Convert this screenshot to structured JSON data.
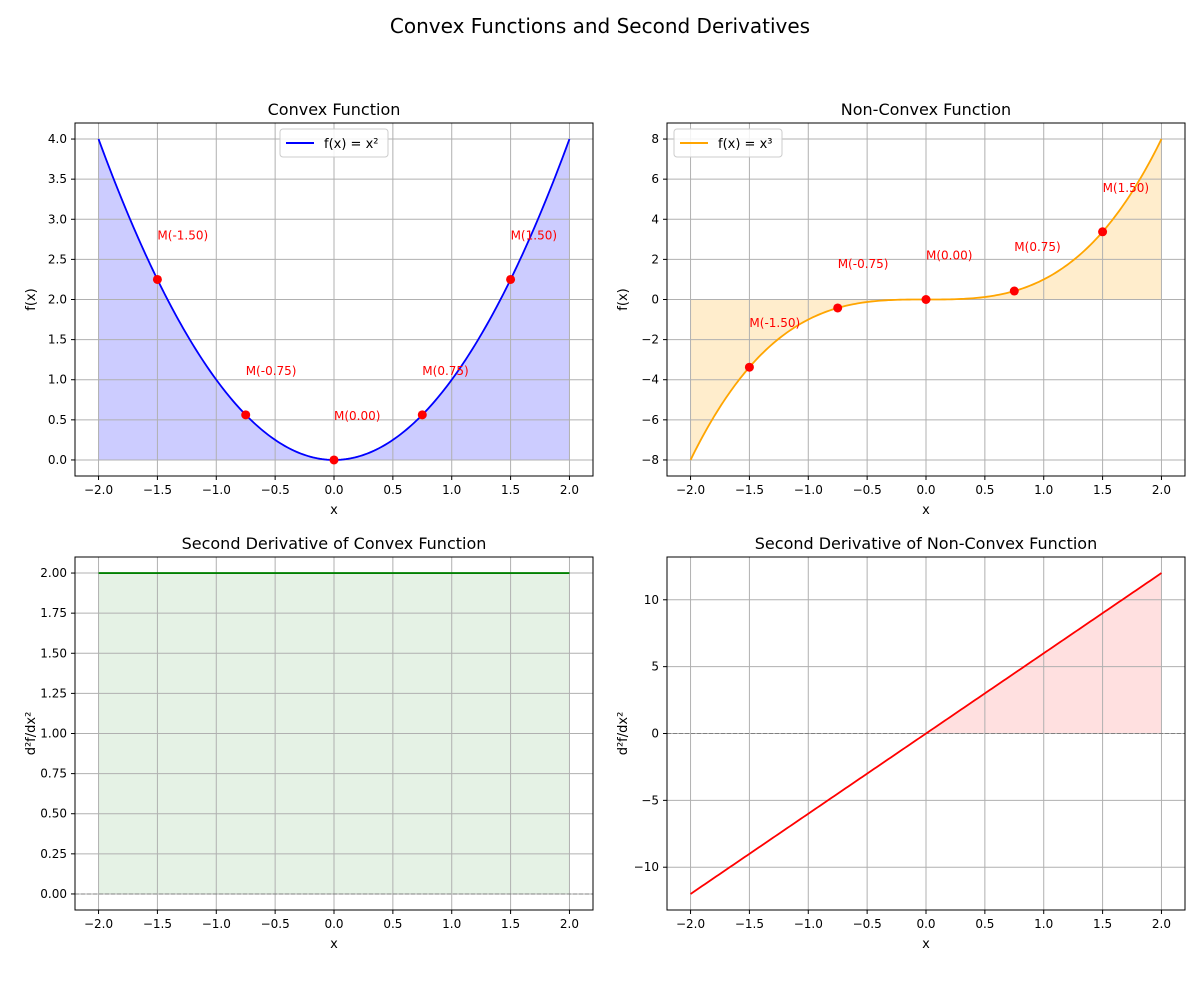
{
  "figure": {
    "suptitle": "Convex Functions and Second Derivatives"
  },
  "chart_data": [
    {
      "type": "line",
      "title": "Convex Function",
      "xlabel": "x",
      "ylabel": "f(x)",
      "function": "x^2",
      "xlim": [
        -2.2,
        2.2
      ],
      "ylim": [
        -0.2,
        4.2
      ],
      "xticks": [
        -2.0,
        -1.5,
        -1.0,
        -0.5,
        0.0,
        0.5,
        1.0,
        1.5,
        2.0
      ],
      "xtick_labels": [
        "−2.0",
        "−1.5",
        "−1.0",
        "−0.5",
        "0.0",
        "0.5",
        "1.0",
        "1.5",
        "2.0"
      ],
      "yticks": [
        0.0,
        0.5,
        1.0,
        1.5,
        2.0,
        2.5,
        3.0,
        3.5,
        4.0
      ],
      "ytick_labels": [
        "0.0",
        "0.5",
        "1.0",
        "1.5",
        "2.0",
        "2.5",
        "3.0",
        "3.5",
        "4.0"
      ],
      "x_range": [
        -2,
        2
      ],
      "series": [
        {
          "name": "f(x) = x²",
          "color": "#0000ff"
        }
      ],
      "fill": {
        "color": "#0000ff",
        "alpha": 0.2,
        "mode": "to_zero"
      },
      "points": [
        {
          "x": -1.5,
          "y": 2.25,
          "label": "M(-1.50)"
        },
        {
          "x": -0.75,
          "y": 0.5625,
          "label": "M(-0.75)"
        },
        {
          "x": 0.0,
          "y": 0.0,
          "label": "M(0.00)"
        },
        {
          "x": 0.75,
          "y": 0.5625,
          "label": "M(0.75)"
        },
        {
          "x": 1.5,
          "y": 2.25,
          "label": "M(1.50)"
        }
      ],
      "point_color": "#ff0000",
      "legend": "upper center",
      "grid": true
    },
    {
      "type": "line",
      "title": "Non-Convex Function",
      "xlabel": "x",
      "ylabel": "f(x)",
      "function": "x^3",
      "xlim": [
        -2.2,
        2.2
      ],
      "ylim": [
        -8.8,
        8.8
      ],
      "xticks": [
        -2.0,
        -1.5,
        -1.0,
        -0.5,
        0.0,
        0.5,
        1.0,
        1.5,
        2.0
      ],
      "xtick_labels": [
        "−2.0",
        "−1.5",
        "−1.0",
        "−0.5",
        "0.0",
        "0.5",
        "1.0",
        "1.5",
        "2.0"
      ],
      "yticks": [
        -8,
        -6,
        -4,
        -2,
        0,
        2,
        4,
        6,
        8
      ],
      "ytick_labels": [
        "−8",
        "−6",
        "−4",
        "−2",
        "0",
        "2",
        "4",
        "6",
        "8"
      ],
      "x_range": [
        -2,
        2
      ],
      "series": [
        {
          "name": "f(x) = x³",
          "color": "#ffa500"
        }
      ],
      "fill": {
        "color": "#ffa500",
        "alpha": 0.2,
        "mode": "to_zero"
      },
      "points": [
        {
          "x": -1.5,
          "y": -3.375,
          "label": "M(-1.50)"
        },
        {
          "x": -0.75,
          "y": -0.421875,
          "label": "M(-0.75)"
        },
        {
          "x": 0.0,
          "y": 0.0,
          "label": "M(0.00)"
        },
        {
          "x": 0.75,
          "y": 0.421875,
          "label": "M(0.75)"
        },
        {
          "x": 1.5,
          "y": 3.375,
          "label": "M(1.50)"
        }
      ],
      "point_color": "#ff0000",
      "legend": "upper left",
      "grid": true
    },
    {
      "type": "area",
      "title": "Second Derivative of Convex Function",
      "xlabel": "x",
      "ylabel": "d²f/dx²",
      "function": "2",
      "xlim": [
        -2.2,
        2.2
      ],
      "ylim": [
        -0.1,
        2.1
      ],
      "xticks": [
        -2.0,
        -1.5,
        -1.0,
        -0.5,
        0.0,
        0.5,
        1.0,
        1.5,
        2.0
      ],
      "xtick_labels": [
        "−2.0",
        "−1.5",
        "−1.0",
        "−0.5",
        "0.0",
        "0.5",
        "1.0",
        "1.5",
        "2.0"
      ],
      "yticks": [
        0.0,
        0.25,
        0.5,
        0.75,
        1.0,
        1.25,
        1.5,
        1.75,
        2.0
      ],
      "ytick_labels": [
        "0.00",
        "0.25",
        "0.50",
        "0.75",
        "1.00",
        "1.25",
        "1.50",
        "1.75",
        "2.00"
      ],
      "x_range": [
        -2,
        2
      ],
      "series": [
        {
          "color": "#008000"
        }
      ],
      "fill": {
        "color": "#008000",
        "alpha": 0.1,
        "mode": "where_positive"
      },
      "zero_line": {
        "y": 0,
        "color": "#808080",
        "style": "dashed"
      },
      "points": [],
      "grid": true
    },
    {
      "type": "area",
      "title": "Second Derivative of Non-Convex Function",
      "xlabel": "x",
      "ylabel": "d²f/dx²",
      "function": "6x",
      "xlim": [
        -2.2,
        2.2
      ],
      "ylim": [
        -13.2,
        13.2
      ],
      "xticks": [
        -2.0,
        -1.5,
        -1.0,
        -0.5,
        0.0,
        0.5,
        1.0,
        1.5,
        2.0
      ],
      "xtick_labels": [
        "−2.0",
        "−1.5",
        "−1.0",
        "−0.5",
        "0.0",
        "0.5",
        "1.0",
        "1.5",
        "2.0"
      ],
      "yticks": [
        -10,
        -5,
        0,
        5,
        10
      ],
      "ytick_labels": [
        "−10",
        "−5",
        "0",
        "5",
        "10"
      ],
      "x_range": [
        -2,
        2
      ],
      "series": [
        {
          "color": "#ff0000"
        }
      ],
      "fill": {
        "color": "#ff0000",
        "alpha": 0.12,
        "mode": "where_positive"
      },
      "zero_line": {
        "y": 0,
        "color": "#808080",
        "style": "dashed"
      },
      "points": [],
      "grid": true
    }
  ]
}
